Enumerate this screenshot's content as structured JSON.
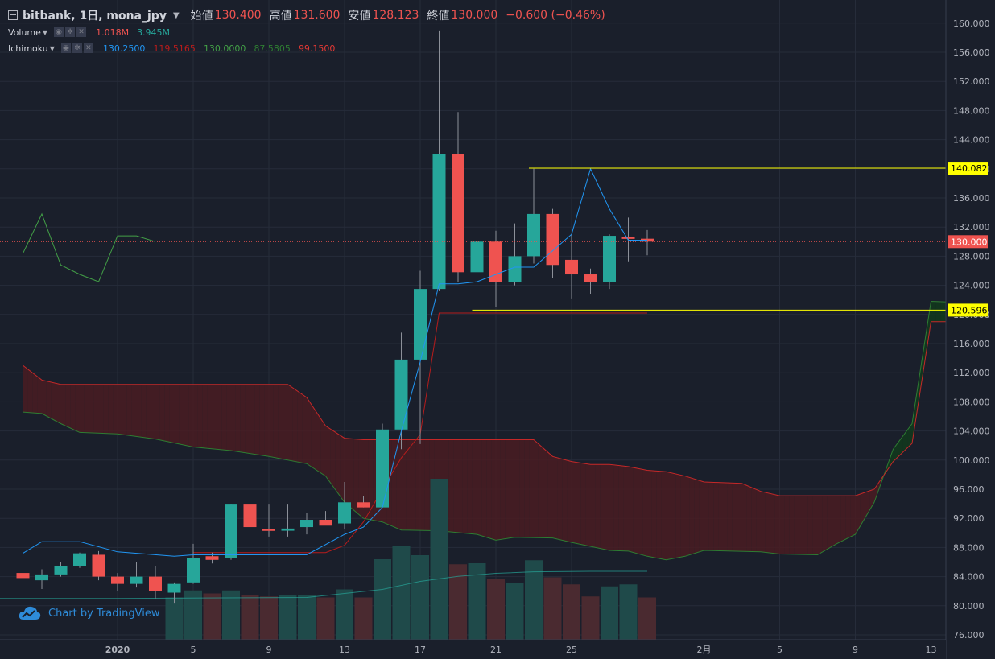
{
  "header": {
    "symbol": "bitbank, 1日, mona_jpy",
    "open_label": "始値",
    "open": "130.400",
    "high_label": "高値",
    "high": "131.600",
    "low_label": "安値",
    "low": "128.123",
    "close_label": "終値",
    "close": "130.000",
    "change": "−0.600 (−0.46%)"
  },
  "indicators": {
    "volume": {
      "name": "Volume",
      "v1": "1.018M",
      "v2": "3.945M"
    },
    "ichimoku": {
      "name": "Ichimoku",
      "v1": "130.2500",
      "v2": "119.5165",
      "v3": "130.0000",
      "v4": "87.5805",
      "v5": "99.1500"
    }
  },
  "watermark": "Chart by TradingView",
  "colors": {
    "background": "#1a1f2b",
    "up": "#26a69a",
    "down": "#ef5350",
    "grid": "#262c3a",
    "tenkan": "#2196f3",
    "kijun": "#b71c1c",
    "chikou": "#43a047",
    "spanA": "#2e7d32",
    "spanB": "#c62828",
    "kumo_bear": "#4a1c22",
    "kumo_bull": "#12391c",
    "hline": "#ffff00",
    "price_tag": "#ef5350",
    "volume_ma": "#26a69a"
  },
  "chart_data": {
    "type": "candlestick",
    "y_axis": {
      "min": 76,
      "max": 160,
      "step": 4,
      "labels": [
        "76.000",
        "80.000",
        "84.000",
        "88.000",
        "92.000",
        "96.000",
        "100.000",
        "104.000",
        "108.000",
        "112.000",
        "116.000",
        "120.000",
        "124.000",
        "128.000",
        "132.000",
        "136.000",
        "140.000",
        "144.000",
        "148.000",
        "152.000",
        "156.000",
        "160.000"
      ]
    },
    "x_axis": {
      "labels": [
        {
          "text": "2020",
          "x": 0
        },
        {
          "text": "5",
          "x": 4
        },
        {
          "text": "9",
          "x": 8
        },
        {
          "text": "13",
          "x": 12
        },
        {
          "text": "17",
          "x": 16
        },
        {
          "text": "21",
          "x": 20
        },
        {
          "text": "25",
          "x": 24
        },
        {
          "text": "2月",
          "x": 31
        },
        {
          "text": "5",
          "x": 35
        },
        {
          "text": "9",
          "x": 39
        },
        {
          "text": "13",
          "x": 43
        }
      ]
    },
    "candles": [
      {
        "x": -5,
        "o": 84.5,
        "h": 85.5,
        "l": 83.0,
        "c": 83.8
      },
      {
        "x": -4,
        "o": 83.5,
        "h": 85.0,
        "l": 82.3,
        "c": 84.3
      },
      {
        "x": -3,
        "o": 84.3,
        "h": 86.0,
        "l": 84.0,
        "c": 85.5
      },
      {
        "x": -2,
        "o": 85.5,
        "h": 87.3,
        "l": 85.2,
        "c": 87.2
      },
      {
        "x": -1,
        "o": 87.0,
        "h": 87.5,
        "l": 83.5,
        "c": 84.0
      },
      {
        "x": 0,
        "o": 84.0,
        "h": 84.5,
        "l": 82.0,
        "c": 83.0
      },
      {
        "x": 1,
        "o": 83.0,
        "h": 86.0,
        "l": 82.5,
        "c": 84.0
      },
      {
        "x": 2,
        "o": 84.0,
        "h": 85.5,
        "l": 81.0,
        "c": 82.0
      },
      {
        "x": 3,
        "o": 81.8,
        "h": 83.2,
        "l": 80.3,
        "c": 83.0
      },
      {
        "x": 4,
        "o": 83.2,
        "h": 88.5,
        "l": 83.0,
        "c": 86.6
      },
      {
        "x": 5,
        "o": 86.8,
        "h": 87.3,
        "l": 85.8,
        "c": 86.3
      },
      {
        "x": 6,
        "o": 86.5,
        "h": 94.0,
        "l": 86.3,
        "c": 94.0
      },
      {
        "x": 7,
        "o": 94.0,
        "h": 94.0,
        "l": 89.5,
        "c": 90.8
      },
      {
        "x": 8,
        "o": 90.5,
        "h": 94.0,
        "l": 89.5,
        "c": 90.3
      },
      {
        "x": 9,
        "o": 90.3,
        "h": 94.0,
        "l": 89.5,
        "c": 90.6
      },
      {
        "x": 10,
        "o": 90.8,
        "h": 92.8,
        "l": 89.8,
        "c": 91.8
      },
      {
        "x": 11,
        "o": 91.8,
        "h": 93.0,
        "l": 91.3,
        "c": 91.0
      },
      {
        "x": 12,
        "o": 91.3,
        "h": 97.0,
        "l": 90.5,
        "c": 94.2
      },
      {
        "x": 13,
        "o": 94.2,
        "h": 95.0,
        "l": 93.5,
        "c": 93.5
      },
      {
        "x": 14,
        "o": 93.5,
        "h": 105.0,
        "l": 93.5,
        "c": 104.2
      },
      {
        "x": 15,
        "o": 104.2,
        "h": 117.5,
        "l": 101.5,
        "c": 113.8
      },
      {
        "x": 16,
        "o": 113.8,
        "h": 126.0,
        "l": 102.2,
        "c": 123.5
      },
      {
        "x": 17,
        "o": 123.5,
        "h": 159.0,
        "l": 123.2,
        "c": 142.0
      },
      {
        "x": 18,
        "o": 142.0,
        "h": 147.8,
        "l": 124.5,
        "c": 125.8
      },
      {
        "x": 19,
        "o": 125.8,
        "h": 139.0,
        "l": 121.0,
        "c": 130.0
      },
      {
        "x": 20,
        "o": 130.0,
        "h": 131.5,
        "l": 121.0,
        "c": 124.5
      },
      {
        "x": 21,
        "o": 124.5,
        "h": 132.5,
        "l": 124.0,
        "c": 128.0
      },
      {
        "x": 22,
        "o": 128.0,
        "h": 140.0,
        "l": 127.0,
        "c": 133.8
      },
      {
        "x": 23,
        "o": 133.8,
        "h": 134.5,
        "l": 125.0,
        "c": 126.8
      },
      {
        "x": 24,
        "o": 127.5,
        "h": 131.0,
        "l": 122.2,
        "c": 125.5
      },
      {
        "x": 25,
        "o": 125.5,
        "h": 126.3,
        "l": 122.8,
        "c": 124.5
      },
      {
        "x": 26,
        "o": 124.5,
        "h": 131.0,
        "l": 123.5,
        "c": 130.8
      },
      {
        "x": 27,
        "o": 130.6,
        "h": 133.3,
        "l": 127.3,
        "c": 130.4
      },
      {
        "x": 28,
        "o": 130.4,
        "h": 131.6,
        "l": 128.123,
        "c": 130.0
      }
    ],
    "volume": [
      {
        "x": 3,
        "v": 4.2,
        "up": true
      },
      {
        "x": 4,
        "v": 4.9,
        "up": true
      },
      {
        "x": 5,
        "v": 4.6,
        "up": false
      },
      {
        "x": 6,
        "v": 4.9,
        "up": true
      },
      {
        "x": 7,
        "v": 4.4,
        "up": false
      },
      {
        "x": 8,
        "v": 4.3,
        "up": false
      },
      {
        "x": 9,
        "v": 4.4,
        "up": true
      },
      {
        "x": 10,
        "v": 4.4,
        "up": true
      },
      {
        "x": 11,
        "v": 4.2,
        "up": false
      },
      {
        "x": 12,
        "v": 5.0,
        "up": true
      },
      {
        "x": 13,
        "v": 4.2,
        "up": false
      },
      {
        "x": 14,
        "v": 8.0,
        "up": true
      },
      {
        "x": 15,
        "v": 9.3,
        "up": true
      },
      {
        "x": 16,
        "v": 8.4,
        "up": true
      },
      {
        "x": 17,
        "v": 16.0,
        "up": true
      },
      {
        "x": 18,
        "v": 7.5,
        "up": false
      },
      {
        "x": 19,
        "v": 7.6,
        "up": true
      },
      {
        "x": 20,
        "v": 6.0,
        "up": false
      },
      {
        "x": 21,
        "v": 5.6,
        "up": true
      },
      {
        "x": 22,
        "v": 7.9,
        "up": true
      },
      {
        "x": 23,
        "v": 6.2,
        "up": false
      },
      {
        "x": 24,
        "v": 5.5,
        "up": false
      },
      {
        "x": 25,
        "v": 4.3,
        "up": false
      },
      {
        "x": 26,
        "v": 5.3,
        "up": true
      },
      {
        "x": 27,
        "v": 5.5,
        "up": true
      },
      {
        "x": 28,
        "v": 4.2,
        "up": false
      }
    ],
    "volume_ma": [
      [
        -12,
        4.1
      ],
      [
        0,
        4.1
      ],
      [
        10,
        4.2
      ],
      [
        14,
        5.0
      ],
      [
        16,
        5.8
      ],
      [
        18,
        6.3
      ],
      [
        20,
        6.6
      ],
      [
        22,
        6.75
      ],
      [
        25,
        6.8
      ],
      [
        28,
        6.8
      ]
    ],
    "tenkan": [
      [
        -5,
        87.2
      ],
      [
        -4,
        88.8
      ],
      [
        -2,
        88.8
      ],
      [
        0,
        87.4
      ],
      [
        3,
        86.8
      ],
      [
        4,
        87.0
      ],
      [
        10,
        87.0
      ],
      [
        12,
        89.8
      ],
      [
        13,
        90.8
      ],
      [
        14,
        93.5
      ],
      [
        15,
        104.0
      ],
      [
        16,
        113.5
      ],
      [
        17,
        124.2
      ],
      [
        18,
        124.2
      ],
      [
        19,
        124.5
      ],
      [
        21,
        126.5
      ],
      [
        22,
        126.5
      ],
      [
        24,
        131.0
      ],
      [
        25,
        140.0
      ],
      [
        26,
        134.5
      ],
      [
        27,
        130.2
      ],
      [
        28,
        130.2
      ]
    ],
    "kijun": [
      [
        4,
        87.3
      ],
      [
        11,
        87.3
      ],
      [
        12,
        88.3
      ],
      [
        13,
        91.5
      ],
      [
        14,
        96.0
      ],
      [
        15,
        100.3
      ],
      [
        16,
        103.5
      ],
      [
        17,
        120.2
      ],
      [
        28,
        120.2
      ]
    ],
    "chikou": [
      [
        -5,
        128.4
      ],
      [
        -4,
        133.8
      ],
      [
        -3,
        126.8
      ],
      [
        -2,
        125.5
      ],
      [
        -1,
        124.5
      ],
      [
        0,
        130.8
      ],
      [
        1,
        130.8
      ],
      [
        2,
        130.0
      ]
    ],
    "span_a": [
      [
        -5,
        106.6
      ],
      [
        -4,
        106.4
      ],
      [
        -3,
        105.0
      ],
      [
        -2,
        103.8
      ],
      [
        0,
        103.6
      ],
      [
        2,
        102.9
      ],
      [
        4,
        101.8
      ],
      [
        6,
        101.3
      ],
      [
        8,
        100.5
      ],
      [
        10,
        99.5
      ],
      [
        11,
        97.8
      ],
      [
        12,
        94.2
      ],
      [
        13,
        92.0
      ],
      [
        14,
        91.5
      ],
      [
        15,
        90.4
      ],
      [
        17,
        90.3
      ],
      [
        19,
        89.8
      ],
      [
        20,
        89.0
      ],
      [
        21,
        89.4
      ],
      [
        23,
        89.3
      ],
      [
        24,
        88.7
      ],
      [
        26,
        87.6
      ],
      [
        27,
        87.5
      ],
      [
        28,
        86.8
      ],
      [
        29,
        86.3
      ],
      [
        30,
        86.8
      ],
      [
        31,
        87.6
      ],
      [
        34,
        87.4
      ],
      [
        35,
        87.1
      ],
      [
        37,
        87.0
      ],
      [
        38,
        88.5
      ],
      [
        39,
        89.8
      ],
      [
        40,
        94.2
      ],
      [
        41,
        101.5
      ],
      [
        42,
        105.0
      ],
      [
        43,
        121.8
      ],
      [
        44,
        121.7
      ],
      [
        45,
        121.7
      ]
    ],
    "span_b": [
      [
        -5,
        113.0
      ],
      [
        -4,
        111.0
      ],
      [
        -3,
        110.4
      ],
      [
        -2,
        110.4
      ],
      [
        8,
        110.4
      ],
      [
        9,
        110.4
      ],
      [
        10,
        108.6
      ],
      [
        11,
        104.7
      ],
      [
        12,
        103.0
      ],
      [
        13,
        102.8
      ],
      [
        22,
        102.8
      ],
      [
        23,
        100.5
      ],
      [
        24,
        99.8
      ],
      [
        25,
        99.4
      ],
      [
        26,
        99.4
      ],
      [
        27,
        99.1
      ],
      [
        28,
        98.6
      ],
      [
        29,
        98.4
      ],
      [
        30,
        97.8
      ],
      [
        31,
        97.0
      ],
      [
        33,
        96.8
      ],
      [
        34,
        95.7
      ],
      [
        35,
        95.1
      ],
      [
        39,
        95.1
      ],
      [
        40,
        96.0
      ],
      [
        41,
        99.8
      ],
      [
        42,
        102.3
      ],
      [
        43,
        119.0
      ],
      [
        45,
        119.0
      ]
    ],
    "hlines": [
      {
        "price": 140.082,
        "label": "140.082",
        "x_start": 22
      },
      {
        "price": 120.596,
        "label": "120.596",
        "x_start": 19
      }
    ],
    "last_price": {
      "price": 130.0,
      "label": "130.000"
    }
  }
}
